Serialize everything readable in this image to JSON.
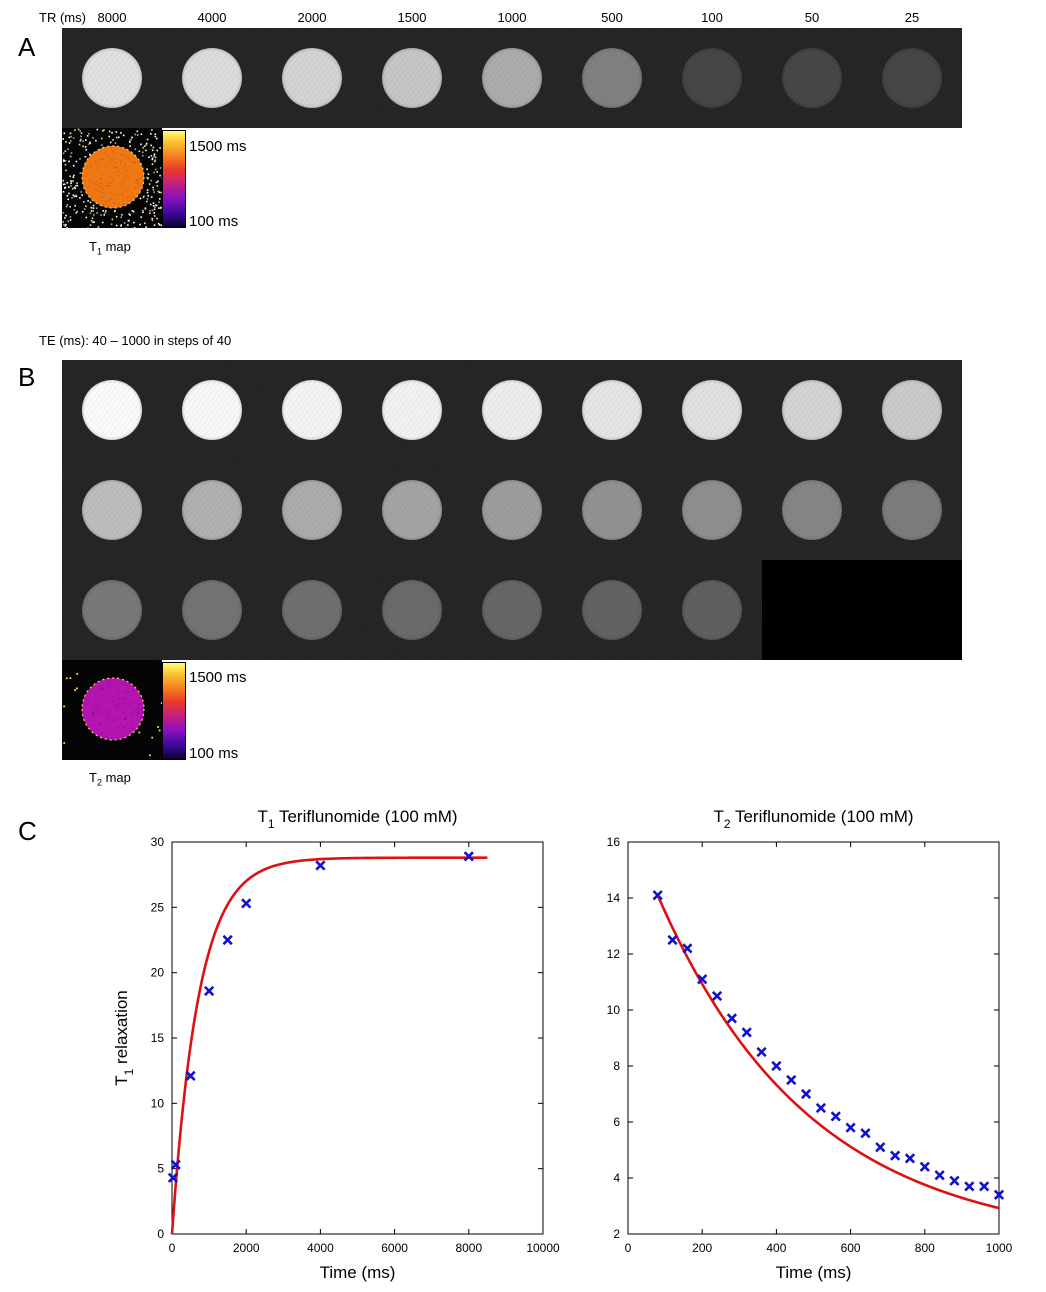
{
  "panel_a": {
    "letter": "A",
    "tr_label": "TR (ms)",
    "tr_values": [
      "8000",
      "4000",
      "2000",
      "1500",
      "1000",
      "500",
      "100",
      "50",
      "25"
    ],
    "disc_brightness": [
      0.86,
      0.84,
      0.8,
      0.74,
      0.62,
      0.42,
      0.15,
      0.15,
      0.15
    ],
    "map": {
      "label_main": "T",
      "label_sub": "1",
      "label_rest": " map",
      "fill_color": "#f07814"
    },
    "colorbar": {
      "max_label": "1500 ms",
      "min_label": "100 ms"
    }
  },
  "panel_b": {
    "letter": "B",
    "te_label": "TE (ms): 40 – 1000 in steps of 40",
    "row_brightness": [
      [
        0.98,
        0.97,
        0.95,
        0.94,
        0.92,
        0.88,
        0.86,
        0.8,
        0.76
      ],
      [
        0.7,
        0.64,
        0.62,
        0.58,
        0.55,
        0.5,
        0.48,
        0.44,
        0.4
      ],
      [
        0.38,
        0.36,
        0.34,
        0.32,
        0.3,
        0.28,
        0.27
      ]
    ],
    "map": {
      "label_main": "T",
      "label_sub": "2",
      "label_rest": " map",
      "fill_color": "#b414b0"
    },
    "colorbar": {
      "max_label": "1500 ms",
      "min_label": "100 ms"
    }
  },
  "panel_c": {
    "letter": "C",
    "series_color": "#1212cc",
    "fit_color": "#dd1111"
  },
  "chart_data": [
    {
      "type": "scatter",
      "title_main": "T",
      "title_sub": "1",
      "title_rest": " Teriflunomide (100 mM)",
      "xlabel": "Time (ms)",
      "ylabel_main": "T",
      "ylabel_sub": "1",
      "ylabel_rest": " relaxation",
      "xlim": [
        0,
        10000
      ],
      "ylim": [
        0,
        30
      ],
      "xticks": [
        0,
        2000,
        4000,
        6000,
        8000,
        10000
      ],
      "yticks": [
        0,
        5,
        10,
        15,
        20,
        25,
        30
      ],
      "x": [
        25,
        100,
        500,
        1000,
        1500,
        2000,
        4000,
        8000
      ],
      "y": [
        4.3,
        5.3,
        12.1,
        18.6,
        22.5,
        25.3,
        28.2,
        28.9
      ],
      "fit": {
        "model": "A*(1-exp(-x/T))",
        "A": 28.8,
        "T": 720,
        "x_range": [
          0,
          8500
        ]
      }
    },
    {
      "type": "scatter",
      "title_main": "T",
      "title_sub": "2",
      "title_rest": " Teriflunomide (100 mM)",
      "xlabel": "Time (ms)",
      "xlim": [
        0,
        1000
      ],
      "ylim": [
        2,
        16
      ],
      "xticks": [
        0,
        200,
        400,
        600,
        800,
        1000
      ],
      "yticks": [
        2,
        4,
        6,
        8,
        10,
        12,
        14,
        16
      ],
      "x": [
        80,
        120,
        160,
        200,
        240,
        280,
        320,
        360,
        400,
        440,
        480,
        520,
        560,
        600,
        640,
        680,
        720,
        760,
        800,
        840,
        880,
        920,
        960,
        1000
      ],
      "y": [
        14.1,
        12.5,
        12.2,
        11.1,
        10.5,
        9.7,
        9.2,
        8.5,
        8.0,
        7.5,
        7.0,
        6.5,
        6.2,
        5.8,
        5.6,
        5.1,
        4.8,
        4.7,
        4.4,
        4.1,
        3.9,
        3.7,
        3.7,
        3.4
      ],
      "fit": {
        "model": "A*exp(-x/T)+C",
        "A": 14.1,
        "T": 410,
        "C": 1.6,
        "x_range": [
          80,
          1000
        ]
      }
    }
  ]
}
